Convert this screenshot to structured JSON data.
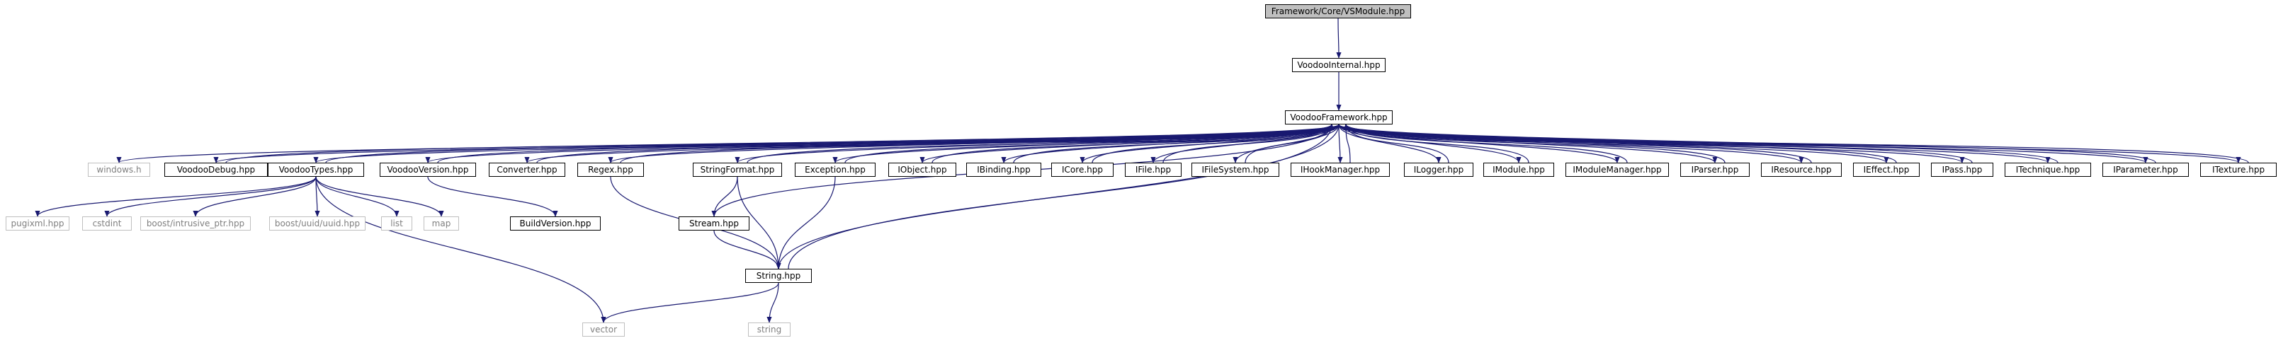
{
  "graph": {
    "edge_color": "#191970",
    "external_border_color": "#bfbfbf",
    "root_fill_color": "#bfbfbf",
    "nodes": [
      {
        "id": "root",
        "label": "Framework/Core/VSModule.hpp",
        "kind": "root"
      },
      {
        "id": "vi",
        "label": "VoodooInternal.hpp",
        "kind": "file"
      },
      {
        "id": "vf",
        "label": "VoodooFramework.hpp",
        "kind": "file"
      },
      {
        "id": "win",
        "label": "windows.h",
        "kind": "external"
      },
      {
        "id": "vd",
        "label": "VoodooDebug.hpp",
        "kind": "file"
      },
      {
        "id": "vt",
        "label": "VoodooTypes.hpp",
        "kind": "file"
      },
      {
        "id": "vv",
        "label": "VoodooVersion.hpp",
        "kind": "file"
      },
      {
        "id": "conv",
        "label": "Converter.hpp",
        "kind": "file"
      },
      {
        "id": "regex",
        "label": "Regex.hpp",
        "kind": "file"
      },
      {
        "id": "sf",
        "label": "StringFormat.hpp",
        "kind": "file"
      },
      {
        "id": "exc",
        "label": "Exception.hpp",
        "kind": "file"
      },
      {
        "id": "iobj",
        "label": "IObject.hpp",
        "kind": "file"
      },
      {
        "id": "ibind",
        "label": "IBinding.hpp",
        "kind": "file"
      },
      {
        "id": "icore",
        "label": "ICore.hpp",
        "kind": "file"
      },
      {
        "id": "ifile",
        "label": "IFile.hpp",
        "kind": "file"
      },
      {
        "id": "ifs",
        "label": "IFileSystem.hpp",
        "kind": "file"
      },
      {
        "id": "ihm",
        "label": "IHookManager.hpp",
        "kind": "file"
      },
      {
        "id": "ilog",
        "label": "ILogger.hpp",
        "kind": "file"
      },
      {
        "id": "imod",
        "label": "IModule.hpp",
        "kind": "file"
      },
      {
        "id": "imm",
        "label": "IModuleManager.hpp",
        "kind": "file"
      },
      {
        "id": "ipar",
        "label": "IParser.hpp",
        "kind": "file"
      },
      {
        "id": "ires",
        "label": "IResource.hpp",
        "kind": "file"
      },
      {
        "id": "ieff",
        "label": "IEffect.hpp",
        "kind": "file"
      },
      {
        "id": "ipass",
        "label": "IPass.hpp",
        "kind": "file"
      },
      {
        "id": "itech",
        "label": "ITechnique.hpp",
        "kind": "file"
      },
      {
        "id": "iparam",
        "label": "IParameter.hpp",
        "kind": "file"
      },
      {
        "id": "itex",
        "label": "ITexture.hpp",
        "kind": "file"
      },
      {
        "id": "pugi",
        "label": "pugixml.hpp",
        "kind": "external"
      },
      {
        "id": "cstd",
        "label": "cstdint",
        "kind": "external"
      },
      {
        "id": "bip",
        "label": "boost/intrusive_ptr.hpp",
        "kind": "external"
      },
      {
        "id": "buuid",
        "label": "boost/uuid/uuid.hpp",
        "kind": "external"
      },
      {
        "id": "list",
        "label": "list",
        "kind": "external"
      },
      {
        "id": "map",
        "label": "map",
        "kind": "external"
      },
      {
        "id": "bv",
        "label": "BuildVersion.hpp",
        "kind": "file"
      },
      {
        "id": "stream",
        "label": "Stream.hpp",
        "kind": "file"
      },
      {
        "id": "str",
        "label": "String.hpp",
        "kind": "file"
      },
      {
        "id": "vec",
        "label": "vector",
        "kind": "external"
      },
      {
        "id": "string",
        "label": "string",
        "kind": "external"
      }
    ],
    "edges": [
      [
        "root",
        "vi"
      ],
      [
        "vi",
        "vf"
      ],
      [
        "vf",
        "win"
      ],
      [
        "vf",
        "vd"
      ],
      [
        "vf",
        "vt"
      ],
      [
        "vf",
        "vv"
      ],
      [
        "vf",
        "conv"
      ],
      [
        "vf",
        "regex"
      ],
      [
        "vf",
        "sf"
      ],
      [
        "vf",
        "exc"
      ],
      [
        "vf",
        "iobj"
      ],
      [
        "vf",
        "ibind"
      ],
      [
        "vf",
        "icore"
      ],
      [
        "vf",
        "ifile"
      ],
      [
        "vf",
        "ifs"
      ],
      [
        "vf",
        "ihm"
      ],
      [
        "vf",
        "ilog"
      ],
      [
        "vf",
        "imod"
      ],
      [
        "vf",
        "imm"
      ],
      [
        "vf",
        "ipar"
      ],
      [
        "vf",
        "ires"
      ],
      [
        "vf",
        "ieff"
      ],
      [
        "vf",
        "ipass"
      ],
      [
        "vf",
        "itech"
      ],
      [
        "vf",
        "iparam"
      ],
      [
        "vf",
        "itex"
      ],
      [
        "vf",
        "str"
      ],
      [
        "vd",
        "vf"
      ],
      [
        "vt",
        "vf"
      ],
      [
        "vv",
        "vf"
      ],
      [
        "conv",
        "vf"
      ],
      [
        "regex",
        "vf"
      ],
      [
        "sf",
        "vf"
      ],
      [
        "exc",
        "vf"
      ],
      [
        "iobj",
        "vf"
      ],
      [
        "ibind",
        "vf"
      ],
      [
        "icore",
        "vf"
      ],
      [
        "ifile",
        "vf"
      ],
      [
        "ifs",
        "vf"
      ],
      [
        "ihm",
        "vf"
      ],
      [
        "ilog",
        "vf"
      ],
      [
        "imod",
        "vf"
      ],
      [
        "imm",
        "vf"
      ],
      [
        "ipar",
        "vf"
      ],
      [
        "ires",
        "vf"
      ],
      [
        "ieff",
        "vf"
      ],
      [
        "ipass",
        "vf"
      ],
      [
        "itech",
        "vf"
      ],
      [
        "iparam",
        "vf"
      ],
      [
        "itex",
        "vf"
      ],
      [
        "stream",
        "vf"
      ],
      [
        "str",
        "vf"
      ],
      [
        "vt",
        "pugi"
      ],
      [
        "vt",
        "cstd"
      ],
      [
        "vt",
        "bip"
      ],
      [
        "vt",
        "buuid"
      ],
      [
        "vt",
        "list"
      ],
      [
        "vt",
        "map"
      ],
      [
        "vt",
        "vec"
      ],
      [
        "vv",
        "bv"
      ],
      [
        "regex",
        "str"
      ],
      [
        "sf",
        "stream"
      ],
      [
        "sf",
        "str"
      ],
      [
        "exc",
        "str"
      ],
      [
        "stream",
        "str"
      ],
      [
        "str",
        "vec"
      ],
      [
        "str",
        "string"
      ]
    ]
  }
}
